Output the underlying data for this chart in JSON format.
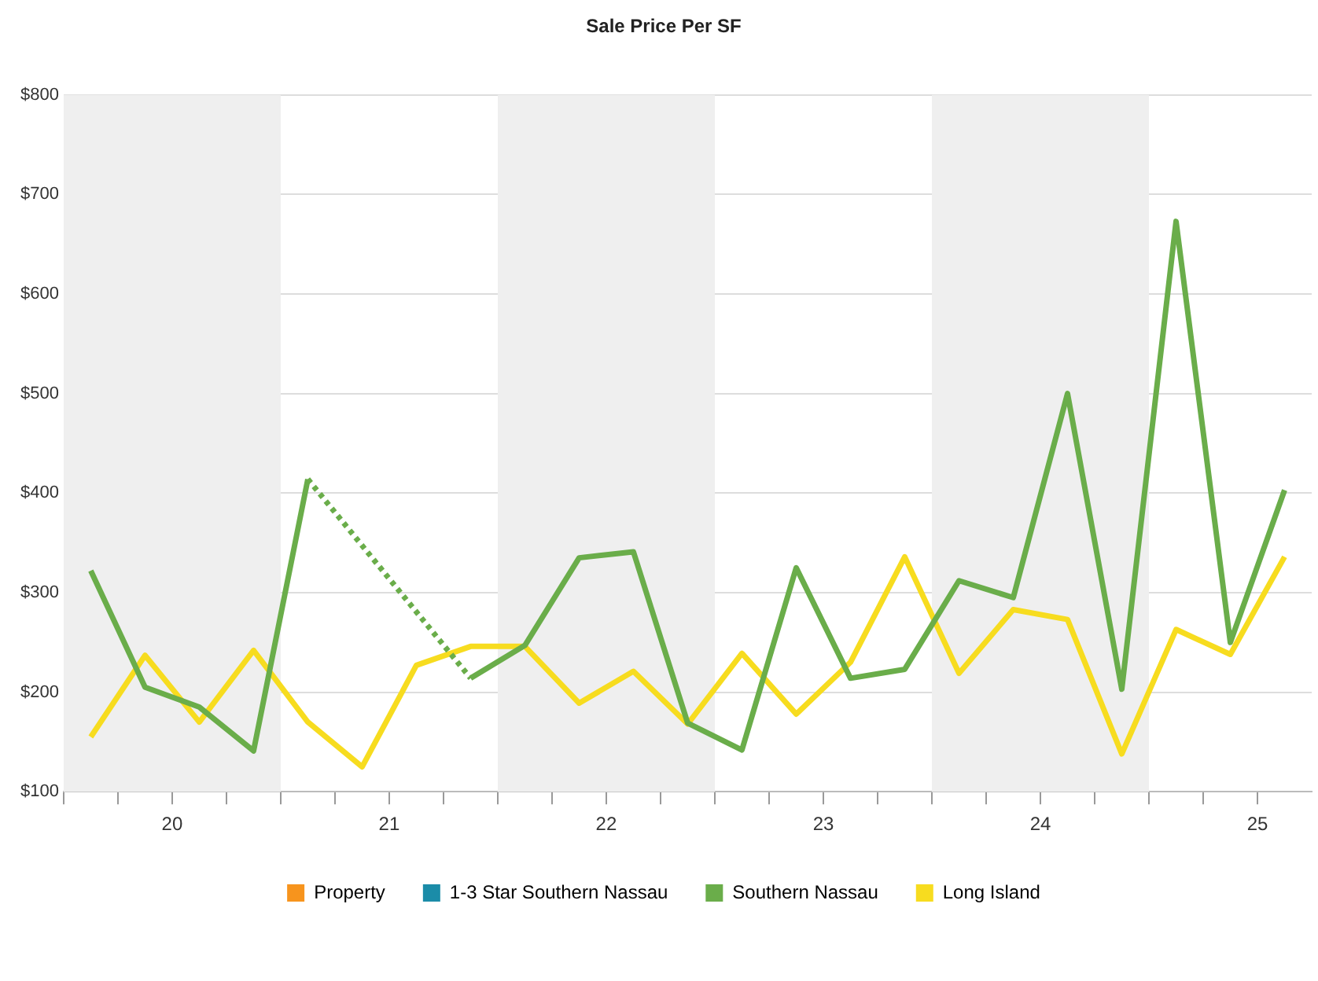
{
  "chart_data": {
    "type": "line",
    "title": "Sale Price Per SF",
    "x": [
      19.625,
      19.875,
      20.125,
      20.375,
      20.625,
      20.875,
      21.125,
      21.375,
      21.625,
      21.875,
      22.125,
      22.375,
      22.625,
      22.875,
      23.125,
      23.375,
      23.625,
      23.875,
      24.125,
      24.375,
      24.625,
      24.875,
      25.125
    ],
    "series": [
      {
        "name": "Property",
        "color": "#f7941d",
        "values": [
          null,
          null,
          null,
          null,
          null,
          null,
          null,
          null,
          null,
          null,
          null,
          null,
          null,
          null,
          null,
          null,
          null,
          null,
          null,
          null,
          null,
          null,
          null
        ]
      },
      {
        "name": "1-3 Star Southern Nassau",
        "color": "#1b8ca8",
        "values": [
          null,
          null,
          null,
          null,
          null,
          null,
          null,
          null,
          null,
          null,
          null,
          null,
          null,
          null,
          null,
          null,
          null,
          null,
          null,
          null,
          null,
          null,
          null
        ]
      },
      {
        "name": "Southern Nassau",
        "color": "#6aad4a",
        "values": [
          322,
          205,
          185,
          141,
          414,
          null,
          null,
          214,
          247,
          335,
          341,
          169,
          142,
          325,
          214,
          223,
          312,
          295,
          500,
          203,
          673,
          250,
          403
        ]
      },
      {
        "name": "Long Island",
        "color": "#f7dc1f",
        "values": [
          155,
          237,
          170,
          242,
          170,
          125,
          227,
          246,
          246,
          189,
          221,
          168,
          239,
          178,
          230,
          336,
          219,
          283,
          273,
          138,
          263,
          238,
          336
        ]
      }
    ],
    "xlim": [
      19.5,
      25.25
    ],
    "xticks": [
      {
        "value": 19.5,
        "label": null
      },
      {
        "value": 19.75,
        "label": null
      },
      20,
      {
        "value": 20.25,
        "label": null
      },
      {
        "value": 20.5,
        "label": null
      },
      {
        "value": 20.75,
        "label": null
      },
      21,
      {
        "value": 21.25,
        "label": null
      },
      {
        "value": 21.5,
        "label": null
      },
      {
        "value": 21.75,
        "label": null
      },
      22,
      {
        "value": 22.25,
        "label": null
      },
      {
        "value": 22.5,
        "label": null
      },
      {
        "value": 22.75,
        "label": null
      },
      23,
      {
        "value": 23.25,
        "label": null
      },
      {
        "value": 23.5,
        "label": null
      },
      {
        "value": 23.75,
        "label": null
      },
      24,
      {
        "value": 24.25,
        "label": null
      },
      {
        "value": 24.5,
        "label": null
      },
      {
        "value": 24.75,
        "label": null
      },
      25
    ],
    "ylim": [
      100,
      800
    ],
    "yticks": [
      {
        "value": 100,
        "label": "$100"
      },
      {
        "value": 200,
        "label": "$200"
      },
      {
        "value": 300,
        "label": "$300"
      },
      {
        "value": 400,
        "label": "$400"
      },
      {
        "value": 500,
        "label": "$500"
      },
      {
        "value": 600,
        "label": "$600"
      },
      {
        "value": 700,
        "label": "$700"
      },
      {
        "value": 800,
        "label": "$800"
      }
    ],
    "bands": [
      {
        "axis": "x",
        "from": 19.5,
        "to": 20.5,
        "color": "#efefef"
      },
      {
        "axis": "x",
        "from": 21.5,
        "to": 22.5,
        "color": "#efefef"
      },
      {
        "axis": "x",
        "from": 23.5,
        "to": 24.5,
        "color": "#efefef"
      }
    ],
    "grid": "y",
    "legend": "bottom",
    "marker": "none",
    "line_style": "solid"
  }
}
